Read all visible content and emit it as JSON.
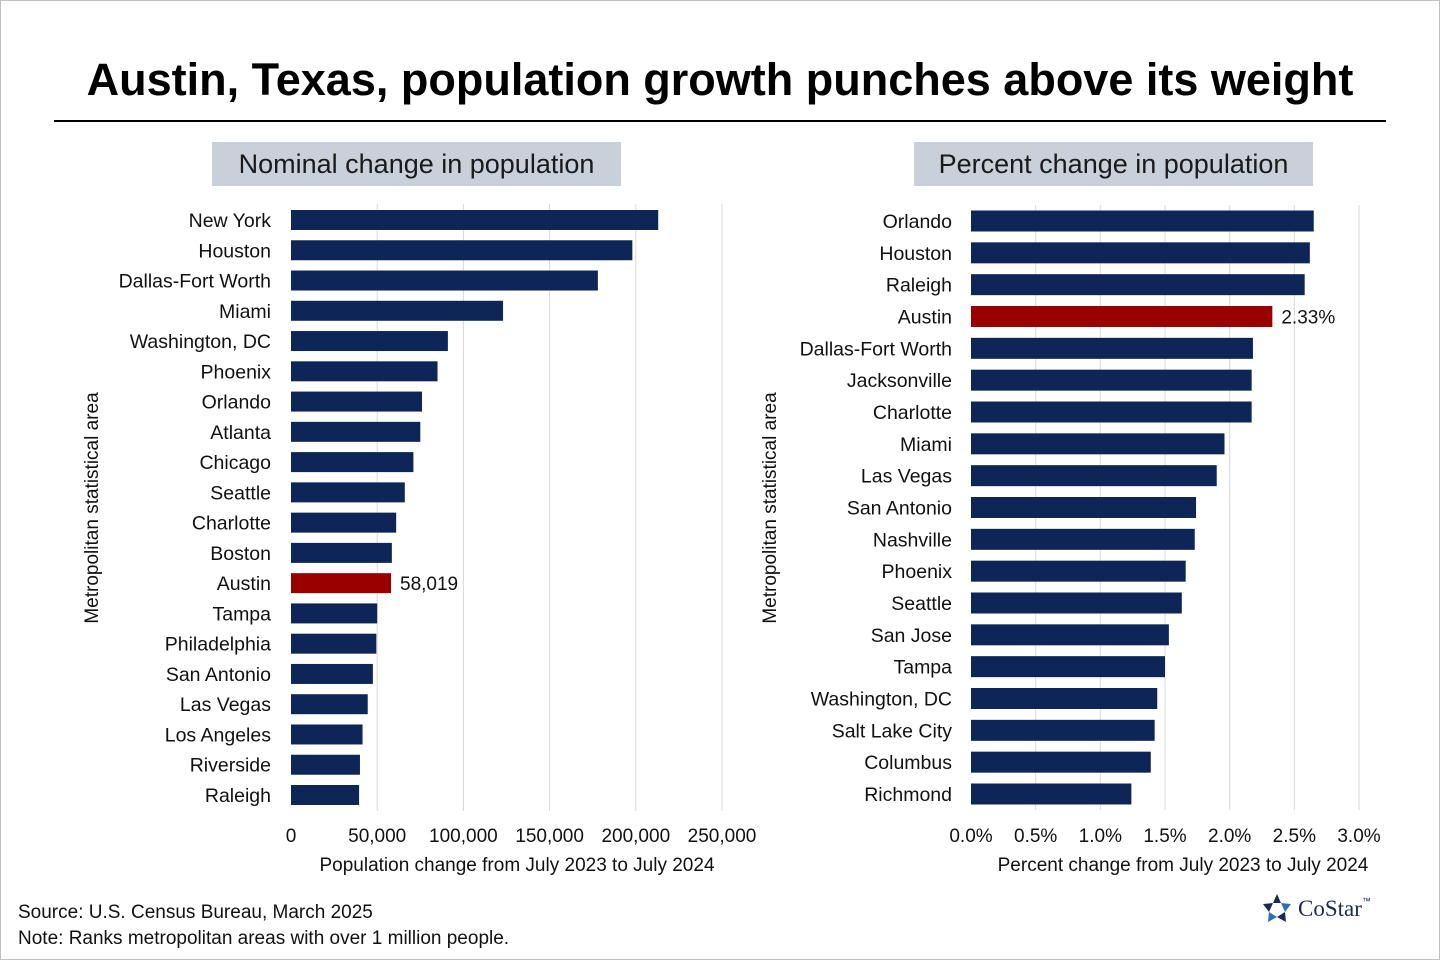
{
  "title": "Austin, Texas, population growth punches above its weight",
  "source": "Source: U.S. Census Bureau, March 2025",
  "note": "Note: Ranks metropolitan areas with over 1 million people.",
  "brand": "CoStar",
  "brand_mark": "™",
  "colors": {
    "bar": "#0d2657",
    "highlight": "#990000",
    "grid": "#d9d9d9",
    "panel_title_bg": "#c9d0da"
  },
  "chart_data": [
    {
      "type": "bar",
      "orientation": "horizontal",
      "title": "Nominal change in population",
      "xlabel": "Population change from July 2023 to July 2024",
      "ylabel": "Metropolitan statistical area",
      "xlim": [
        0,
        250000
      ],
      "xticks": [
        0,
        50000,
        100000,
        150000,
        200000,
        250000
      ],
      "xtick_labels": [
        "0",
        "50,000",
        "100,000",
        "150,000",
        "200,000",
        "250,000"
      ],
      "grid": true,
      "highlight": "Austin",
      "highlight_label": "58,019",
      "categories": [
        "New York",
        "Houston",
        "Dallas-Fort Worth",
        "Miami",
        "Washington, DC",
        "Phoenix",
        "Orlando",
        "Atlanta",
        "Chicago",
        "Seattle",
        "Charlotte",
        "Boston",
        "Austin",
        "Tampa",
        "Philadelphia",
        "San Antonio",
        "Las Vegas",
        "Los Angeles",
        "Riverside",
        "Raleigh"
      ],
      "values": [
        213000,
        198000,
        178000,
        123000,
        91000,
        85000,
        76000,
        75000,
        71000,
        66000,
        61000,
        58500,
        58019,
        50000,
        49500,
        47500,
        44500,
        41500,
        40000,
        39500
      ]
    },
    {
      "type": "bar",
      "orientation": "horizontal",
      "title": "Percent change in population",
      "xlabel": "Percent change from July 2023 to July 2024",
      "ylabel": "Metropolitan statistical area",
      "xlim": [
        0,
        3.0
      ],
      "xticks": [
        0,
        0.5,
        1.0,
        1.5,
        2.0,
        2.5,
        3.0
      ],
      "xtick_labels": [
        "0.0%",
        "0.5%",
        "1.0%",
        "1.5%",
        "2.0%",
        "2.5%",
        "3.0%"
      ],
      "grid": true,
      "highlight": "Austin",
      "highlight_label": "2.33%",
      "categories": [
        "Orlando",
        "Houston",
        "Raleigh",
        "Austin",
        "Dallas-Fort Worth",
        "Jacksonville",
        "Charlotte",
        "Miami",
        "Las Vegas",
        "San Antonio",
        "Nashville",
        "Phoenix",
        "Seattle",
        "San Jose",
        "Tampa",
        "Washington, DC",
        "Salt Lake City",
        "Columbus",
        "Richmond"
      ],
      "values": [
        2.65,
        2.62,
        2.58,
        2.33,
        2.18,
        2.17,
        2.17,
        1.96,
        1.9,
        1.74,
        1.73,
        1.66,
        1.63,
        1.53,
        1.5,
        1.44,
        1.42,
        1.39,
        1.24
      ]
    }
  ]
}
